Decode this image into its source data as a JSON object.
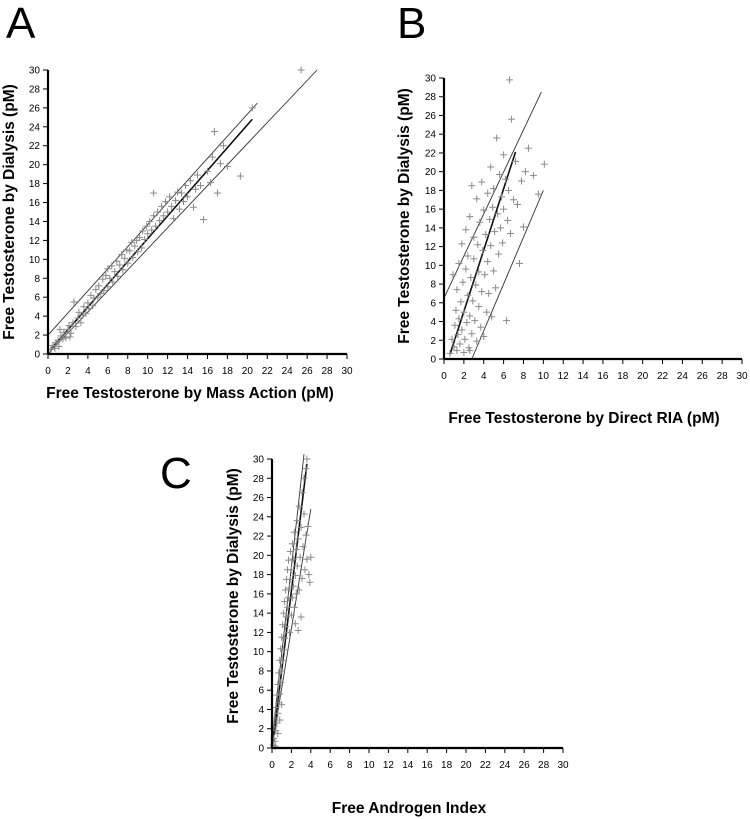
{
  "chart_data": [
    {
      "panel": "A",
      "type": "scatter",
      "xlabel": "Free Testosterone by Mass Action (pM)",
      "ylabel": "Free Testosterone by Dialysis (pM)",
      "xlim": [
        0,
        30
      ],
      "ylim": [
        0,
        30
      ],
      "xticks": [
        0,
        2,
        4,
        6,
        8,
        10,
        12,
        14,
        16,
        18,
        20,
        22,
        24,
        26,
        28,
        30
      ],
      "yticks": [
        0,
        2,
        4,
        6,
        8,
        10,
        12,
        14,
        16,
        18,
        20,
        22,
        24,
        26,
        28,
        30
      ],
      "points": [
        [
          0.3,
          0.5
        ],
        [
          0.5,
          0.9
        ],
        [
          0.7,
          0.6
        ],
        [
          0.8,
          1.2
        ],
        [
          1.0,
          1.4
        ],
        [
          1.1,
          0.8
        ],
        [
          1.3,
          1.9
        ],
        [
          1.5,
          1.6
        ],
        [
          1.6,
          2.3
        ],
        [
          1.8,
          1.7
        ],
        [
          2.0,
          2.6
        ],
        [
          2.1,
          3.0
        ],
        [
          2.3,
          2.2
        ],
        [
          2.5,
          3.3
        ],
        [
          2.6,
          5.5
        ],
        [
          2.8,
          2.9
        ],
        [
          3.0,
          3.8
        ],
        [
          3.1,
          4.4
        ],
        [
          3.3,
          3.3
        ],
        [
          3.5,
          4.1
        ],
        [
          3.6,
          5.0
        ],
        [
          3.8,
          4.3
        ],
        [
          4.0,
          5.4
        ],
        [
          4.1,
          4.8
        ],
        [
          4.3,
          6.2
        ],
        [
          4.5,
          5.1
        ],
        [
          4.6,
          5.9
        ],
        [
          4.8,
          6.8
        ],
        [
          5.0,
          6.0
        ],
        [
          5.1,
          7.2
        ],
        [
          5.3,
          6.4
        ],
        [
          5.5,
          7.9
        ],
        [
          5.6,
          6.7
        ],
        [
          5.8,
          8.3
        ],
        [
          6.0,
          7.1
        ],
        [
          6.0,
          9.0
        ],
        [
          6.2,
          8.0
        ],
        [
          6.4,
          9.3
        ],
        [
          6.5,
          7.6
        ],
        [
          6.7,
          8.7
        ],
        [
          6.9,
          9.8
        ],
        [
          7.0,
          8.2
        ],
        [
          7.2,
          9.4
        ],
        [
          7.4,
          10.5
        ],
        [
          7.5,
          8.9
        ],
        [
          7.7,
          10.1
        ],
        [
          7.9,
          11.0
        ],
        [
          8.0,
          9.6
        ],
        [
          8.2,
          10.9
        ],
        [
          8.4,
          11.8
        ],
        [
          8.5,
          10.2
        ],
        [
          8.7,
          11.4
        ],
        [
          8.9,
          12.0
        ],
        [
          9.0,
          10.8
        ],
        [
          9.2,
          12.3
        ],
        [
          9.4,
          11.2
        ],
        [
          9.5,
          13.0
        ],
        [
          9.7,
          12.1
        ],
        [
          9.9,
          13.5
        ],
        [
          10.0,
          12.7
        ],
        [
          10.2,
          14.0
        ],
        [
          10.4,
          13.1
        ],
        [
          10.6,
          14.6
        ],
        [
          10.8,
          13.5
        ],
        [
          10.6,
          17.0
        ],
        [
          11.0,
          15.0
        ],
        [
          11.2,
          14.1
        ],
        [
          11.4,
          15.6
        ],
        [
          11.6,
          14.6
        ],
        [
          11.8,
          16.1
        ],
        [
          12.0,
          15.0
        ],
        [
          12.2,
          16.6
        ],
        [
          12.4,
          15.6
        ],
        [
          12.6,
          14.3
        ],
        [
          12.8,
          16.2
        ],
        [
          13.0,
          17.1
        ],
        [
          13.2,
          15.3
        ],
        [
          13.4,
          17.0
        ],
        [
          13.6,
          16.1
        ],
        [
          13.8,
          17.8
        ],
        [
          14.0,
          16.6
        ],
        [
          14.3,
          18.3
        ],
        [
          14.6,
          15.5
        ],
        [
          14.8,
          17.4
        ],
        [
          15.0,
          18.9
        ],
        [
          15.3,
          17.8
        ],
        [
          15.6,
          14.2
        ],
        [
          16.0,
          19.3
        ],
        [
          16.3,
          18.1
        ],
        [
          16.5,
          20.8
        ],
        [
          16.7,
          23.5
        ],
        [
          17.0,
          17.0
        ],
        [
          17.3,
          20.1
        ],
        [
          17.6,
          22.0
        ],
        [
          18.0,
          19.8
        ],
        [
          19.3,
          18.8
        ],
        [
          20.5,
          26.0
        ],
        [
          25.4,
          30.0
        ],
        [
          1.2,
          2.6
        ],
        [
          2.2,
          1.8
        ]
      ],
      "fit": [
        [
          0.2,
          0.4
        ],
        [
          20.5,
          24.8
        ]
      ],
      "band_upper": [
        [
          0,
          2.0
        ],
        [
          21,
          26.5
        ]
      ],
      "band_lower": [
        [
          0,
          0
        ],
        [
          27,
          30
        ]
      ]
    },
    {
      "panel": "B",
      "type": "scatter",
      "xlabel": "Free Testosterone by Direct RIA (pM)",
      "ylabel": "Free Testosterone by Dialysis (pM)",
      "xlim": [
        0,
        30
      ],
      "ylim": [
        0,
        30
      ],
      "xticks": [
        0,
        2,
        4,
        6,
        8,
        10,
        12,
        14,
        16,
        18,
        20,
        22,
        24,
        26,
        28,
        30
      ],
      "yticks": [
        0,
        2,
        4,
        6,
        8,
        10,
        12,
        14,
        16,
        18,
        20,
        22,
        24,
        26,
        28,
        30
      ],
      "points": [
        [
          0.6,
          0.6
        ],
        [
          0.8,
          2.1
        ],
        [
          0.9,
          9.0
        ],
        [
          1.0,
          1.3
        ],
        [
          1.1,
          3.6
        ],
        [
          1.2,
          5.2
        ],
        [
          1.3,
          0.9
        ],
        [
          1.3,
          7.4
        ],
        [
          1.4,
          2.6
        ],
        [
          1.5,
          4.3
        ],
        [
          1.5,
          10.2
        ],
        [
          1.6,
          1.6
        ],
        [
          1.7,
          6.1
        ],
        [
          1.8,
          3.1
        ],
        [
          1.8,
          12.3
        ],
        [
          1.9,
          8.2
        ],
        [
          2.0,
          0.7
        ],
        [
          2.0,
          5.0
        ],
        [
          2.1,
          2.1
        ],
        [
          2.2,
          9.6
        ],
        [
          2.2,
          13.8
        ],
        [
          2.3,
          3.9
        ],
        [
          2.4,
          6.8
        ],
        [
          2.4,
          11.0
        ],
        [
          2.5,
          1.2
        ],
        [
          2.6,
          4.6
        ],
        [
          2.6,
          15.2
        ],
        [
          2.7,
          8.7
        ],
        [
          2.8,
          2.7
        ],
        [
          2.8,
          18.5
        ],
        [
          2.9,
          6.2
        ],
        [
          3.0,
          10.7
        ],
        [
          3.0,
          13.0
        ],
        [
          3.1,
          4.1
        ],
        [
          3.2,
          7.9
        ],
        [
          3.3,
          17.1
        ],
        [
          3.3,
          1.9
        ],
        [
          3.4,
          12.2
        ],
        [
          3.5,
          5.6
        ],
        [
          3.5,
          9.3
        ],
        [
          3.6,
          14.6
        ],
        [
          3.7,
          3.4
        ],
        [
          3.8,
          18.9
        ],
        [
          3.8,
          7.2
        ],
        [
          3.9,
          11.6
        ],
        [
          4.0,
          15.9
        ],
        [
          4.0,
          2.4
        ],
        [
          4.1,
          9.0
        ],
        [
          4.2,
          13.3
        ],
        [
          4.3,
          5.0
        ],
        [
          4.4,
          17.7
        ],
        [
          4.4,
          10.4
        ],
        [
          4.5,
          7.0
        ],
        [
          4.6,
          14.9
        ],
        [
          4.7,
          12.1
        ],
        [
          4.7,
          20.5
        ],
        [
          4.8,
          4.5
        ],
        [
          4.9,
          16.2
        ],
        [
          5.0,
          9.4
        ],
        [
          5.0,
          18.2
        ],
        [
          5.1,
          13.6
        ],
        [
          5.2,
          7.6
        ],
        [
          5.3,
          23.6
        ],
        [
          5.4,
          15.5
        ],
        [
          5.5,
          11.2
        ],
        [
          5.6,
          19.7
        ],
        [
          5.7,
          14.0
        ],
        [
          5.8,
          17.3
        ],
        [
          5.9,
          12.4
        ],
        [
          6.0,
          21.8
        ],
        [
          6.0,
          16.0
        ],
        [
          6.2,
          19.2
        ],
        [
          6.3,
          4.1
        ],
        [
          6.4,
          14.8
        ],
        [
          6.5,
          18.0
        ],
        [
          6.6,
          29.8
        ],
        [
          6.7,
          13.4
        ],
        [
          6.8,
          25.6
        ],
        [
          7.0,
          17.0
        ],
        [
          7.2,
          21.1
        ],
        [
          7.4,
          16.5
        ],
        [
          7.6,
          10.2
        ],
        [
          7.8,
          19.0
        ],
        [
          8.0,
          14.1
        ],
        [
          8.2,
          20.0
        ],
        [
          8.5,
          22.5
        ],
        [
          9.0,
          19.6
        ],
        [
          9.5,
          17.6
        ],
        [
          10.1,
          20.8
        ],
        [
          2.6,
          0.9
        ]
      ],
      "fit": [
        [
          0.6,
          0.5
        ],
        [
          7.2,
          22.1
        ]
      ],
      "band_upper": [
        [
          0,
          6.5
        ],
        [
          9.8,
          28.5
        ]
      ],
      "band_lower": [
        [
          2.8,
          0
        ],
        [
          10,
          18
        ]
      ]
    },
    {
      "panel": "C",
      "type": "scatter",
      "xlabel": "Free Androgen Index",
      "ylabel": "Free Testosterone by Dialysis (pM)",
      "xlim": [
        0,
        30
      ],
      "ylim": [
        0,
        30
      ],
      "xticks": [
        0,
        2,
        4,
        6,
        8,
        10,
        12,
        14,
        16,
        18,
        20,
        22,
        24,
        26,
        28,
        30
      ],
      "yticks": [
        0,
        2,
        4,
        6,
        8,
        10,
        12,
        14,
        16,
        18,
        20,
        22,
        24,
        26,
        28,
        30
      ],
      "points": [
        [
          0.1,
          0.3
        ],
        [
          0.2,
          1.0
        ],
        [
          0.2,
          2.2
        ],
        [
          0.3,
          0.7
        ],
        [
          0.3,
          3.1
        ],
        [
          0.4,
          1.8
        ],
        [
          0.4,
          4.2
        ],
        [
          0.5,
          2.6
        ],
        [
          0.5,
          5.5
        ],
        [
          0.6,
          3.6
        ],
        [
          0.6,
          6.6
        ],
        [
          0.7,
          4.7
        ],
        [
          0.7,
          7.8
        ],
        [
          0.8,
          5.6
        ],
        [
          0.8,
          9.1
        ],
        [
          0.9,
          6.8
        ],
        [
          0.9,
          10.3
        ],
        [
          1.0,
          8.0
        ],
        [
          1.0,
          11.5
        ],
        [
          1.1,
          9.1
        ],
        [
          1.1,
          12.8
        ],
        [
          1.2,
          10.2
        ],
        [
          1.2,
          14.0
        ],
        [
          1.3,
          11.4
        ],
        [
          1.3,
          15.2
        ],
        [
          1.4,
          12.6
        ],
        [
          1.4,
          16.4
        ],
        [
          1.5,
          13.6
        ],
        [
          1.5,
          17.5
        ],
        [
          1.6,
          14.6
        ],
        [
          1.6,
          18.5
        ],
        [
          1.7,
          15.6
        ],
        [
          1.7,
          19.5
        ],
        [
          1.8,
          16.6
        ],
        [
          1.8,
          12.0
        ],
        [
          1.9,
          17.5
        ],
        [
          1.9,
          20.4
        ],
        [
          2.0,
          13.8
        ],
        [
          2.0,
          18.5
        ],
        [
          2.1,
          15.6
        ],
        [
          2.1,
          21.2
        ],
        [
          2.2,
          16.8
        ],
        [
          2.2,
          19.6
        ],
        [
          2.3,
          14.6
        ],
        [
          2.3,
          22.4
        ],
        [
          2.4,
          17.9
        ],
        [
          2.4,
          12.9
        ],
        [
          2.5,
          20.6
        ],
        [
          2.5,
          16.0
        ],
        [
          2.6,
          23.6
        ],
        [
          2.6,
          18.9
        ],
        [
          2.7,
          12.2
        ],
        [
          2.7,
          21.7
        ],
        [
          2.8,
          16.4
        ],
        [
          2.8,
          25.1
        ],
        [
          2.9,
          19.8
        ],
        [
          3.0,
          13.6
        ],
        [
          3.0,
          22.9
        ],
        [
          3.1,
          26.5
        ],
        [
          3.1,
          17.6
        ],
        [
          3.2,
          20.9
        ],
        [
          3.3,
          24.3
        ],
        [
          3.3,
          28.0
        ],
        [
          3.4,
          18.5
        ],
        [
          3.5,
          22.1
        ],
        [
          3.5,
          29.0
        ],
        [
          3.6,
          30.0
        ],
        [
          3.6,
          19.6
        ],
        [
          3.7,
          23.0
        ],
        [
          3.8,
          18.0
        ],
        [
          3.9,
          17.2
        ],
        [
          4.0,
          19.8
        ],
        [
          0.35,
          0.2
        ],
        [
          0.6,
          1.5
        ],
        [
          0.8,
          2.9
        ],
        [
          1.0,
          4.5
        ]
      ],
      "fit": [
        [
          0.05,
          0.2
        ],
        [
          3.6,
          29.5
        ]
      ],
      "band_upper": [
        [
          0,
          0.8
        ],
        [
          3.3,
          30.5
        ]
      ],
      "band_lower": [
        [
          0,
          0
        ],
        [
          4.0,
          24.8
        ]
      ]
    }
  ]
}
